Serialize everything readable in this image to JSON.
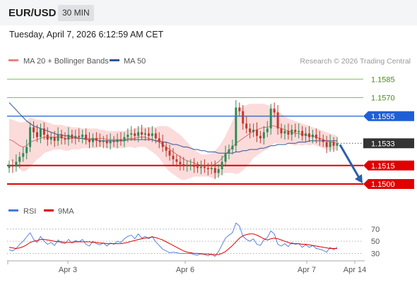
{
  "header": {
    "symbol": "EUR/USD",
    "timeframe": "30 MIN"
  },
  "datetime": "Tuesday, April 7, 2026 6:12:59 AM CET",
  "legend": {
    "ma20": {
      "label": "MA 20 + Bollinger Bands",
      "color": "#f08080"
    },
    "ma50": {
      "label": "MA 50",
      "color": "#2f5597"
    }
  },
  "credit": "Research © 2026 Trading Central",
  "colors": {
    "up": "#2e8b57",
    "down": "#c0392b",
    "resistance_light": "#7cc24a",
    "resistance": "#1f5fd6",
    "support": "#e00000",
    "current": "#333333",
    "band_fill": "#fbd5d5",
    "rsi": "#4a78d8",
    "rsi_ma": "#e00000",
    "arrow": "#2a5fa8"
  },
  "chart_data": [
    {
      "type": "candlestick",
      "ylim": [
        1.1492,
        1.1592
      ],
      "x_ticks": [
        "Apr 3",
        "Apr 6",
        "Apr 7",
        "Apr 14"
      ],
      "levels": [
        {
          "value": 1.1585,
          "label": "1.1585",
          "kind": "resistance_light"
        },
        {
          "value": 1.157,
          "label": "1.1570",
          "kind": "resistance_light"
        },
        {
          "value": 1.1555,
          "label": "1.1555",
          "kind": "resistance"
        },
        {
          "value": 1.1533,
          "label": "1.1533",
          "kind": "current"
        },
        {
          "value": 1.1515,
          "label": "1.1515",
          "kind": "support"
        },
        {
          "value": 1.15,
          "label": "1.1500",
          "kind": "support"
        }
      ],
      "close": [
        1.1515,
        1.1514,
        1.1518,
        1.1522,
        1.1525,
        1.153,
        1.1546,
        1.1542,
        1.1538,
        1.1545,
        1.154,
        1.1536,
        1.1538,
        1.1535,
        1.154,
        1.1537,
        1.1536,
        1.154,
        1.1537,
        1.1539,
        1.1538,
        1.154,
        1.1536,
        1.1534,
        1.1537,
        1.1535,
        1.1534,
        1.1535,
        1.1533,
        1.1535,
        1.1534,
        1.1536,
        1.1535,
        1.1538,
        1.154,
        1.1541,
        1.1539,
        1.1542,
        1.154,
        1.1541,
        1.1539,
        1.1541,
        1.1537,
        1.1534,
        1.153,
        1.1527,
        1.1523,
        1.152,
        1.1518,
        1.1516,
        1.1515,
        1.1515,
        1.1515,
        1.1514,
        1.1513,
        1.1514,
        1.1513,
        1.1512,
        1.1513,
        1.1509,
        1.1512,
        1.1518,
        1.1525,
        1.1528,
        1.1531,
        1.1562,
        1.1559,
        1.1549,
        1.1545,
        1.1542,
        1.1544,
        1.1539,
        1.1537,
        1.1542,
        1.1545,
        1.1561,
        1.1558,
        1.1545,
        1.1541,
        1.1543,
        1.154,
        1.1544,
        1.1542,
        1.1543,
        1.1539,
        1.1541,
        1.1538,
        1.154,
        1.1537,
        1.1536,
        1.1534,
        1.153,
        1.1534,
        1.1531,
        1.1533
      ],
      "ma20": [
        1.1536,
        1.1535,
        1.1533,
        1.1531,
        1.153,
        1.1531,
        1.1534,
        1.1535,
        1.1536,
        1.1537,
        1.1538,
        1.1538,
        1.1538,
        1.1538,
        1.1538,
        1.1538,
        1.1537,
        1.1537,
        1.1537,
        1.1537,
        1.1537,
        1.1537,
        1.1537,
        1.1537,
        1.1537,
        1.1537,
        1.1537,
        1.1537,
        1.1536,
        1.1536,
        1.1536,
        1.1536,
        1.1536,
        1.1536,
        1.1537,
        1.1537,
        1.1537,
        1.1538,
        1.1538,
        1.1538,
        1.1537,
        1.1536,
        1.1535,
        1.1534,
        1.1532,
        1.153,
        1.1528,
        1.1526,
        1.1524,
        1.1522,
        1.152,
        1.1519,
        1.1518,
        1.1517,
        1.1516,
        1.1515,
        1.1515,
        1.1515,
        1.1515,
        1.1516,
        1.1518,
        1.1521,
        1.1524,
        1.1527,
        1.153,
        1.1533,
        1.1535,
        1.1537,
        1.1539,
        1.1541,
        1.1543,
        1.1544,
        1.1545,
        1.1546,
        1.1546,
        1.1547,
        1.1547,
        1.1546,
        1.1545,
        1.1544,
        1.1543,
        1.1542,
        1.1541,
        1.1541,
        1.154,
        1.154,
        1.1539,
        1.1539,
        1.1538,
        1.1537,
        1.1536,
        1.1535,
        1.1534,
        1.1534,
        1.1533
      ],
      "bb_upper": [
        1.1553,
        1.1552,
        1.1551,
        1.155,
        1.155,
        1.1551,
        1.1554,
        1.1553,
        1.1552,
        1.1552,
        1.1551,
        1.155,
        1.1549,
        1.1548,
        1.1548,
        1.1548,
        1.1547,
        1.1547,
        1.1546,
        1.1546,
        1.1546,
        1.1545,
        1.1545,
        1.1545,
        1.1545,
        1.1545,
        1.1544,
        1.1544,
        1.1543,
        1.1543,
        1.1543,
        1.1543,
        1.1543,
        1.1543,
        1.1544,
        1.1544,
        1.1545,
        1.1546,
        1.1546,
        1.1546,
        1.1546,
        1.1546,
        1.1546,
        1.1547,
        1.1547,
        1.1547,
        1.1546,
        1.1544,
        1.1542,
        1.154,
        1.1537,
        1.1534,
        1.1531,
        1.1528,
        1.1526,
        1.1524,
        1.1524,
        1.1524,
        1.1525,
        1.1527,
        1.153,
        1.1534,
        1.1539,
        1.1545,
        1.1551,
        1.1558,
        1.1561,
        1.1563,
        1.1564,
        1.1565,
        1.1565,
        1.1565,
        1.1565,
        1.1565,
        1.1564,
        1.1563,
        1.1561,
        1.1559,
        1.1557,
        1.1555,
        1.1553,
        1.1552,
        1.1551,
        1.155,
        1.1549,
        1.1548,
        1.1547,
        1.1546,
        1.1545,
        1.1544,
        1.1543,
        1.1542,
        1.1541,
        1.154,
        1.1539
      ],
      "bb_lower": [
        1.1519,
        1.1518,
        1.1515,
        1.1512,
        1.151,
        1.1511,
        1.1514,
        1.1517,
        1.152,
        1.1522,
        1.1525,
        1.1526,
        1.1527,
        1.1528,
        1.1528,
        1.1528,
        1.1527,
        1.1527,
        1.1528,
        1.1528,
        1.1528,
        1.1529,
        1.1529,
        1.1529,
        1.1529,
        1.1529,
        1.153,
        1.153,
        1.1529,
        1.1529,
        1.1529,
        1.1529,
        1.1529,
        1.1529,
        1.153,
        1.153,
        1.1529,
        1.153,
        1.153,
        1.153,
        1.1528,
        1.1526,
        1.1524,
        1.1521,
        1.1517,
        1.1513,
        1.151,
        1.1508,
        1.1506,
        1.1504,
        1.1503,
        1.1504,
        1.1505,
        1.1506,
        1.1506,
        1.1506,
        1.1506,
        1.1506,
        1.1505,
        1.1505,
        1.1506,
        1.1508,
        1.1509,
        1.1509,
        1.1509,
        1.1508,
        1.1509,
        1.1511,
        1.1514,
        1.1517,
        1.1521,
        1.1523,
        1.1525,
        1.1527,
        1.1528,
        1.1531,
        1.1533,
        1.1533,
        1.1533,
        1.1533,
        1.1533,
        1.1532,
        1.1531,
        1.1532,
        1.1531,
        1.1532,
        1.1531,
        1.1532,
        1.1531,
        1.153,
        1.1529,
        1.1528,
        1.1527,
        1.1528,
        1.1527
      ],
      "ma50": [
        1.1566,
        1.1563,
        1.156,
        1.1557,
        1.1554,
        1.1551,
        1.1549,
        1.1547,
        1.1546,
        1.1545,
        1.1544,
        1.1543,
        1.1542,
        1.1541,
        1.154,
        1.154,
        1.1539,
        1.1539,
        1.1538,
        1.1538,
        1.1537,
        1.1537,
        1.1536,
        1.1536,
        1.1536,
        1.1536,
        1.1535,
        1.1535,
        1.1535,
        1.1535,
        1.1535,
        1.1535,
        1.1535,
        1.1535,
        1.1536,
        1.1536,
        1.1536,
        1.1536,
        1.1536,
        1.1536,
        1.1536,
        1.1536,
        1.1535,
        1.1535,
        1.1534,
        1.1534,
        1.1533,
        1.1532,
        1.1532,
        1.1531,
        1.153,
        1.153,
        1.1529,
        1.1528,
        1.1528,
        1.1527,
        1.1527,
        1.1526,
        1.1526,
        1.1526,
        1.1525,
        1.1525,
        1.1525,
        1.1525,
        1.1525,
        1.1526,
        1.1526,
        1.1527,
        1.1527,
        1.1528,
        1.1528,
        1.1528,
        1.1529,
        1.1529,
        1.153,
        1.1531,
        1.1531,
        1.1532,
        1.1532,
        1.1532,
        1.1533,
        1.1533,
        1.1533,
        1.1534,
        1.1534,
        1.1534,
        1.1535,
        1.1535,
        1.1535,
        1.1535,
        1.1535,
        1.1535,
        1.1535,
        1.1535,
        1.1535
      ],
      "forecast": {
        "from": 1.1533,
        "to": 1.15
      }
    },
    {
      "type": "line",
      "legend": [
        {
          "label": "RSI",
          "color": "#4a78d8"
        },
        {
          "label": "9MA",
          "color": "#e00000"
        }
      ],
      "ylim": [
        20,
        85
      ],
      "y_ticks": [
        70,
        50,
        30
      ],
      "rsi": [
        36,
        34,
        38,
        45,
        50,
        57,
        64,
        53,
        48,
        58,
        50,
        45,
        48,
        43,
        52,
        47,
        46,
        53,
        47,
        51,
        49,
        53,
        45,
        42,
        50,
        46,
        44,
        47,
        42,
        47,
        45,
        50,
        48,
        54,
        58,
        60,
        54,
        62,
        55,
        58,
        54,
        58,
        49,
        43,
        37,
        34,
        31,
        32,
        31,
        30,
        30,
        30,
        30,
        28,
        27,
        30,
        28,
        26,
        29,
        25,
        33,
        44,
        55,
        60,
        64,
        80,
        75,
        58,
        53,
        50,
        54,
        45,
        43,
        52,
        56,
        67,
        62,
        45,
        42,
        46,
        41,
        48,
        45,
        46,
        40,
        44,
        40,
        43,
        38,
        37,
        35,
        32,
        40,
        36,
        40
      ],
      "rsi_ma": [
        40,
        39,
        38,
        39,
        41,
        44,
        48,
        50,
        51,
        53,
        53,
        52,
        51,
        50,
        49,
        49,
        48,
        48,
        48,
        49,
        49,
        49,
        49,
        49,
        48,
        48,
        47,
        47,
        46,
        46,
        46,
        46,
        46,
        47,
        48,
        50,
        51,
        53,
        54,
        55,
        56,
        57,
        56,
        54,
        52,
        49,
        46,
        43,
        40,
        37,
        34,
        32,
        31,
        30,
        30,
        29,
        29,
        29,
        28,
        28,
        28,
        30,
        33,
        38,
        43,
        49,
        55,
        59,
        61,
        62,
        62,
        60,
        57,
        54,
        52,
        54,
        55,
        54,
        52,
        50,
        48,
        46,
        46,
        46,
        45,
        45,
        44,
        43,
        42,
        41,
        40,
        39,
        38,
        38,
        38
      ]
    }
  ]
}
